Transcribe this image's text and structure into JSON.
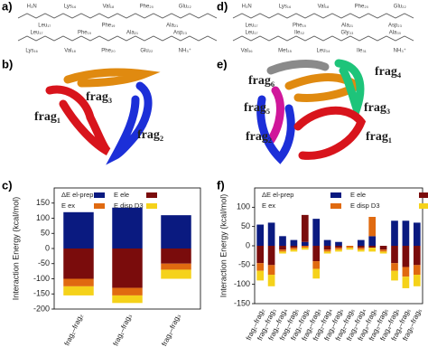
{
  "panel_labels": [
    "a)",
    "b)",
    "c)",
    "d)",
    "e)",
    "f)"
  ],
  "panel_a": {
    "rows": [
      [
        "H₃N",
        "Lys₁₆",
        "Val₁₈",
        "Phe₂₀",
        "Glu₂₂"
      ],
      [
        "Leu₁₇",
        "Phe₁₉",
        "Ala₂₁"
      ],
      [
        "Leu₁₇",
        "Phe₁₉",
        "Ala₂₁",
        "Asp₂₃"
      ],
      [
        "Lys₁₆",
        "Val₁₈",
        "Phe₂₀",
        "Glu₂₂",
        "NH₃⁺"
      ]
    ]
  },
  "panel_d": {
    "rows": [
      [
        "H₃N",
        "Lys₁₆",
        "Val₁₈",
        "Phe₂₀",
        "Glu₂₂"
      ],
      [
        "Leu₁₇",
        "Phe₁₉",
        "Ala₂₁",
        "Asp₂₃"
      ],
      [
        "Leu₁₇",
        "Ile₃₂",
        "Gly₃₃",
        "Ala₃₀"
      ],
      [
        "Val₃₆",
        "Met₃₅",
        "Leu₃₄",
        "Ile₃₁",
        "NH₃⁺"
      ]
    ]
  },
  "panel_b": {
    "fragments": [
      {
        "label": "frag₁",
        "color": "#d8141c"
      },
      {
        "label": "frag₂",
        "color": "#1c2fd8"
      },
      {
        "label": "frag₃",
        "color": "#e08a10"
      }
    ]
  },
  "panel_e": {
    "fragments": [
      {
        "label": "frag₁",
        "color": "#d8141c"
      },
      {
        "label": "frag₂",
        "color": "#1c2fd8"
      },
      {
        "label": "frag₃",
        "color": "#e08a10"
      },
      {
        "label": "frag₄",
        "color": "#1ec47a"
      },
      {
        "label": "frag₅",
        "color": "#d0179a"
      },
      {
        "label": "frag₆",
        "color": "#8a8a8a"
      }
    ]
  },
  "chart_data": [
    {
      "type": "bar",
      "stacked": true,
      "y_label": "Interaction Energy (kcal/mol)",
      "categories": [
        "frag₁–frag₂",
        "frag₁–frag₃",
        "frag₂–frag₃"
      ],
      "ylim": [
        -200,
        200
      ],
      "yticks": [
        -200,
        -150,
        -100,
        -50,
        0,
        50,
        100,
        150
      ],
      "series": [
        {
          "name": "ΔE el-prep",
          "color": "#0a1a80",
          "values": [
            120,
            135,
            110
          ]
        },
        {
          "name": "E ele",
          "color": "#7a0c0c",
          "values": [
            -100,
            -130,
            -50
          ]
        },
        {
          "name": "E ex",
          "color": "#e06a10",
          "values": [
            -25,
            -25,
            -20
          ]
        },
        {
          "name": "E disp D3",
          "color": "#f5d21a",
          "values": [
            -30,
            -25,
            -30
          ]
        }
      ]
    },
    {
      "type": "bar",
      "stacked": true,
      "y_label": "Interaction Energy (kcal/mol)",
      "categories": [
        "frag₁–frag₂",
        "frag₁–frag₃",
        "frag₁–frag₄",
        "frag₁–frag₅",
        "frag₁–frag₆",
        "frag₂–frag₃",
        "frag₂–frag₄",
        "frag₂–frag₅",
        "frag₂–frag₆",
        "frag₃–frag₄",
        "frag₃–frag₅",
        "frag₃–frag₆",
        "frag₄–frag₅",
        "frag₄–frag₆",
        "frag₅–frag₆"
      ],
      "ylim": [
        -150,
        150
      ],
      "yticks": [
        -150,
        -100,
        -50,
        0,
        50,
        100
      ],
      "series": [
        {
          "name": "ΔE el-prep",
          "color": "#0a1a80",
          "values": [
            55,
            60,
            25,
            15,
            10,
            70,
            15,
            10,
            0,
            15,
            25,
            0,
            65,
            65,
            60
          ]
        },
        {
          "name": "E ele",
          "color": "#7a0c0c",
          "values": [
            -45,
            -50,
            -10,
            -5,
            70,
            -40,
            -10,
            -5,
            0,
            -5,
            -5,
            -10,
            -45,
            -55,
            -50
          ]
        },
        {
          "name": "E ex",
          "color": "#e06a10",
          "values": [
            -20,
            -25,
            -5,
            -5,
            -5,
            -20,
            -5,
            -5,
            -5,
            -5,
            50,
            -5,
            -20,
            -25,
            -25
          ]
        },
        {
          "name": "E disp D3",
          "color": "#f5d21a",
          "values": [
            -25,
            -30,
            -5,
            -5,
            -5,
            -25,
            -5,
            -5,
            -5,
            -5,
            -10,
            -5,
            -25,
            -30,
            -30
          ]
        }
      ]
    }
  ]
}
